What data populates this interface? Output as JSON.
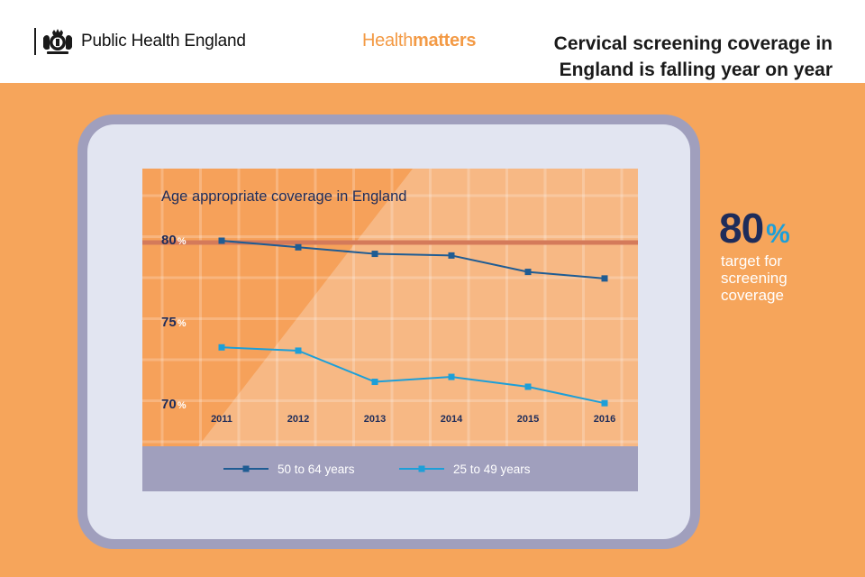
{
  "header": {
    "org_name": "Public Health England",
    "brand_light": "Health",
    "brand_bold": "matters",
    "headline": "Cervical screening coverage in England is falling year on year"
  },
  "callout": {
    "value": "80",
    "unit": "%",
    "caption": "target for screening coverage"
  },
  "colors": {
    "background_orange": "#f6a55b",
    "series_dark": "#1f5c93",
    "series_light": "#1d9fd8",
    "target_line": "#d47a5a",
    "navy_text": "#1e2c5a"
  },
  "chart_data": {
    "type": "line",
    "title": "Age appropriate coverage in England",
    "categories": [
      "2011",
      "2012",
      "2013",
      "2014",
      "2015",
      "2016"
    ],
    "y_ticks": [
      {
        "value": 80,
        "label": "80",
        "unit": "%"
      },
      {
        "value": 75,
        "label": "75",
        "unit": "%"
      },
      {
        "value": 70,
        "label": "70",
        "unit": "%"
      }
    ],
    "ylim": [
      70,
      80
    ],
    "target": {
      "value": 80
    },
    "series": [
      {
        "name": "50 to 64 years",
        "color": "#1f5c93",
        "values": [
          80.0,
          79.6,
          79.2,
          79.1,
          78.1,
          77.7
        ]
      },
      {
        "name": "25 to 49 years",
        "color": "#1d9fd8",
        "values": [
          73.5,
          73.3,
          71.4,
          71.7,
          71.1,
          70.1
        ]
      }
    ],
    "legend_position": "bottom",
    "grid": true
  }
}
